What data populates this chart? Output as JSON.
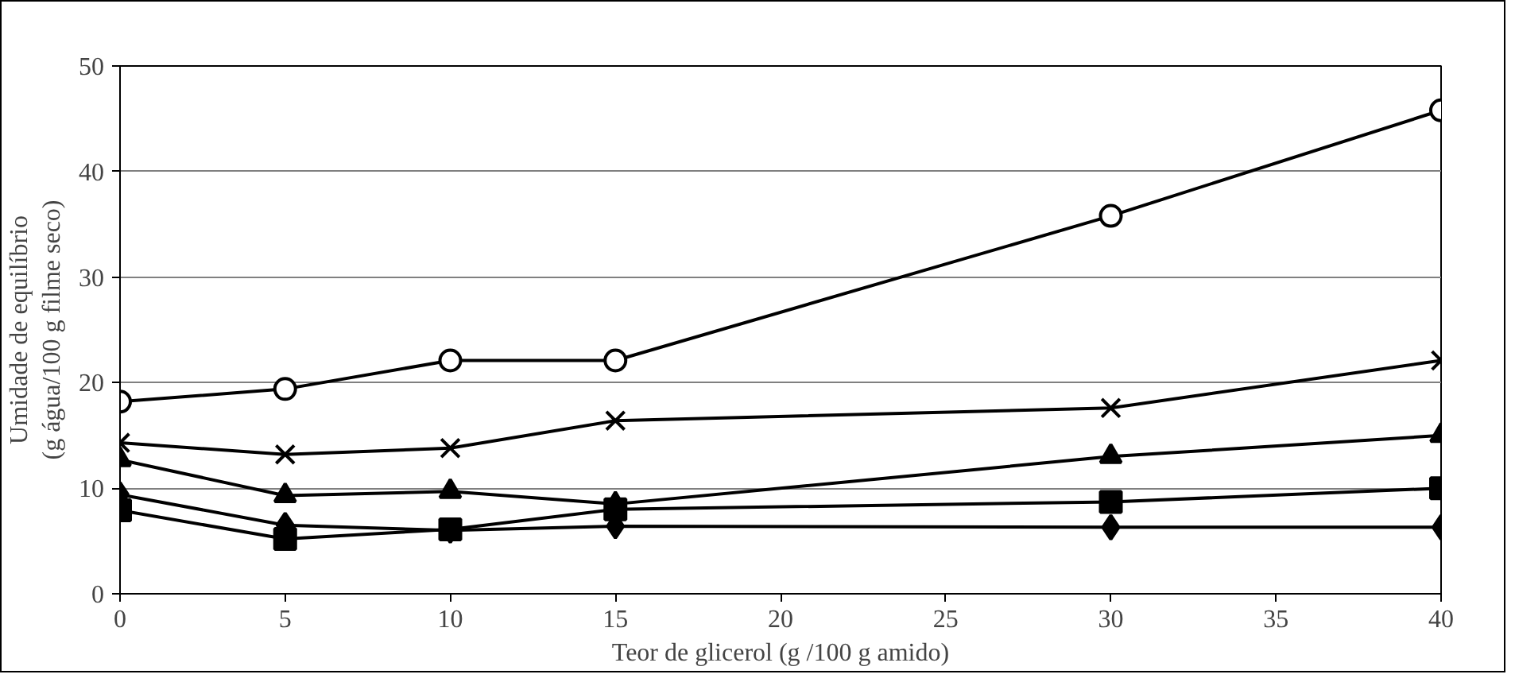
{
  "chart_data": {
    "type": "line",
    "xlabel": "Teor de glicerol (g /100 g amido)",
    "ylabel": "Umidade de equilíbrio\n(g água/100 g filme seco)",
    "x": [
      0,
      5,
      10,
      15,
      30,
      40
    ],
    "xlim": [
      0,
      40
    ],
    "xticks": [
      0,
      5,
      10,
      15,
      20,
      25,
      30,
      35,
      40
    ],
    "ylim": [
      0,
      50
    ],
    "yticks": [
      0,
      10,
      20,
      30,
      40,
      50
    ],
    "grid": "y",
    "line_style": "solid",
    "series": [
      {
        "color": "#000000",
        "marker": "circle",
        "values": [
          18.2,
          19.4,
          22.1,
          22.1,
          35.8,
          45.8
        ]
      },
      {
        "color": "#000000",
        "marker": "cross",
        "values": [
          14.3,
          13.2,
          13.8,
          16.4,
          17.6,
          22.1
        ]
      },
      {
        "color": "#000000",
        "marker": "triangle",
        "values": [
          12.7,
          9.3,
          9.7,
          8.5,
          13.0,
          15.0
        ]
      },
      {
        "color": "#000000",
        "marker": "square",
        "values": [
          7.9,
          5.2,
          6.1,
          8.0,
          8.7,
          10.0
        ]
      },
      {
        "color": "#000000",
        "marker": "diamond",
        "values": [
          9.4,
          6.5,
          6.0,
          6.4,
          6.3,
          6.3
        ]
      }
    ]
  }
}
